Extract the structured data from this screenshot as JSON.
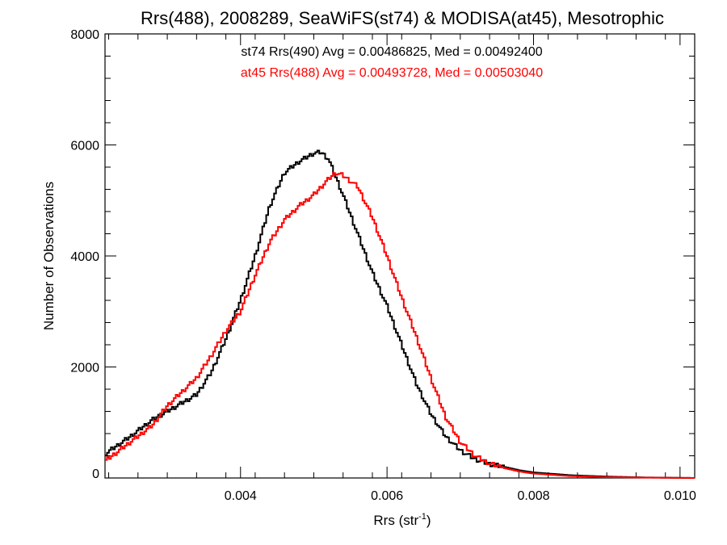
{
  "chart_data": {
    "type": "line",
    "title": "Rrs(488), 2008289, SeaWiFS(st74) & MODISA(at45), Mesotrophic",
    "xlabel": "Rrs (str",
    "xlabel_sup": "-1",
    "xlabel_end": ")",
    "ylabel": "Number of Observations",
    "xlim": [
      0.00215,
      0.0102
    ],
    "ylim": [
      0,
      8000
    ],
    "x_ticks": [
      0.004,
      0.006,
      0.008,
      0.01
    ],
    "x_tick_labels": [
      "0.004",
      "0.006",
      "0.008",
      "0.010"
    ],
    "y_ticks": [
      0,
      2000,
      4000,
      6000,
      8000
    ],
    "y_tick_labels": [
      "0",
      "2000",
      "4000",
      "6000",
      "8000"
    ],
    "grid": false,
    "legend_placement": "top-center",
    "series": [
      {
        "name": "st74 Rrs(490) Avg = 0.00486825, Med = 0.00492400",
        "color": "#000000",
        "x": [
          0.00215,
          0.0025,
          0.0028,
          0.003,
          0.0032,
          0.0034,
          0.0036,
          0.0038,
          0.004,
          0.0042,
          0.0044,
          0.0046,
          0.0048,
          0.005,
          0.0051,
          0.0052,
          0.0054,
          0.0056,
          0.0058,
          0.006,
          0.0062,
          0.0064,
          0.0066,
          0.0068,
          0.007,
          0.0072,
          0.0074,
          0.0076,
          0.0078,
          0.008,
          0.0085,
          0.009,
          0.0095,
          0.0102
        ],
        "y": [
          430,
          750,
          1050,
          1200,
          1350,
          1500,
          1900,
          2500,
          3200,
          4000,
          4900,
          5500,
          5700,
          5850,
          5870,
          5750,
          5100,
          4400,
          3700,
          3100,
          2400,
          1700,
          1150,
          750,
          500,
          340,
          250,
          200,
          140,
          100,
          50,
          25,
          10,
          0
        ]
      },
      {
        "name": "at45 Rrs(488) Avg = 0.00493728, Med = 0.00503040",
        "color": "#ff0000",
        "x": [
          0.00215,
          0.0025,
          0.0028,
          0.003,
          0.0032,
          0.0034,
          0.0036,
          0.0038,
          0.004,
          0.0042,
          0.0044,
          0.0046,
          0.0048,
          0.005,
          0.0052,
          0.0053,
          0.0054,
          0.0056,
          0.0058,
          0.006,
          0.0062,
          0.0064,
          0.0066,
          0.0068,
          0.007,
          0.0072,
          0.0074,
          0.0076,
          0.0078,
          0.008,
          0.0085,
          0.009,
          0.0095,
          0.0102
        ],
        "y": [
          300,
          650,
          950,
          1300,
          1550,
          1800,
          2200,
          2650,
          3000,
          3650,
          4250,
          4650,
          4900,
          5100,
          5380,
          5500,
          5450,
          5250,
          4700,
          4000,
          3250,
          2550,
          1800,
          1100,
          650,
          400,
          260,
          180,
          120,
          80,
          35,
          15,
          8,
          0
        ]
      }
    ]
  }
}
